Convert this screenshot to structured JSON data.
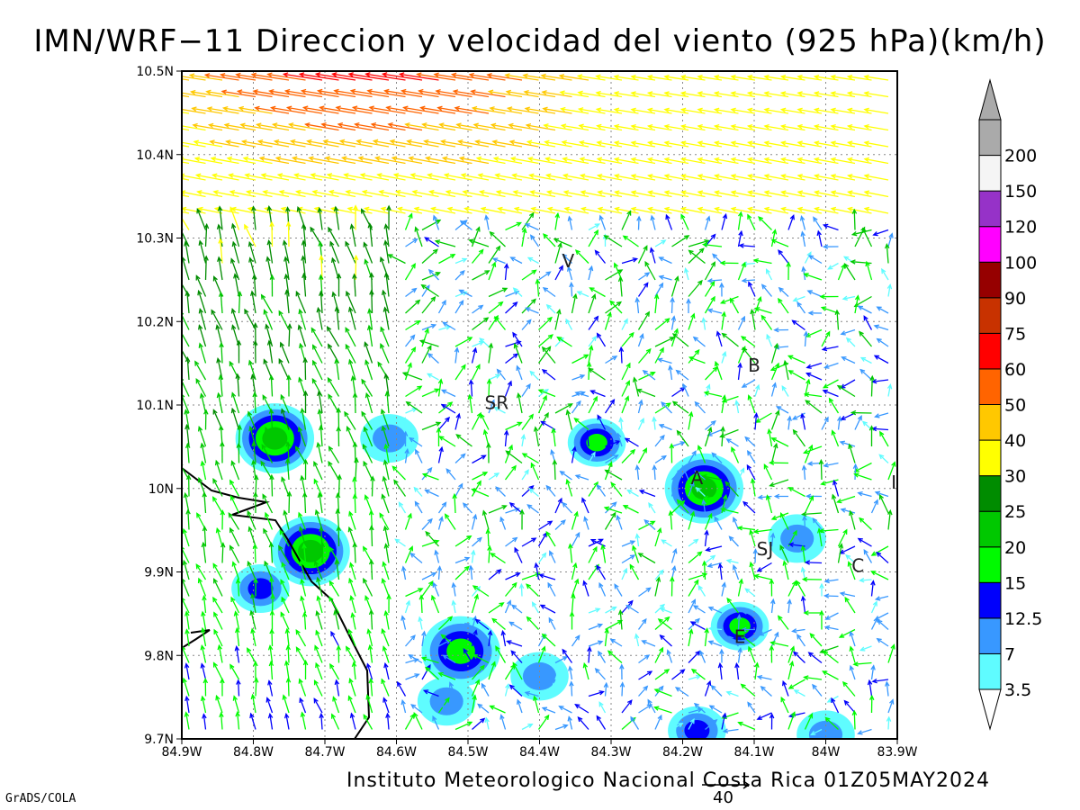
{
  "title": "IMN/WRF−11 Direccion y velocidad del viento (925 hPa)(km/h)",
  "credit": "Instituto Meteorologico Nacional Costa Rica 01Z05MAY2024",
  "software": "GrADS/COLA",
  "reference_vector": {
    "label": "40",
    "value_kmh": 40
  },
  "map": {
    "lon_range": [
      -84.9,
      -83.9
    ],
    "lat_range": [
      9.7,
      10.5
    ],
    "x_ticks": [
      {
        "lon": -84.9,
        "label": "84.9W"
      },
      {
        "lon": -84.8,
        "label": "84.8W"
      },
      {
        "lon": -84.7,
        "label": "84.7W"
      },
      {
        "lon": -84.6,
        "label": "84.6W"
      },
      {
        "lon": -84.5,
        "label": "84.5W"
      },
      {
        "lon": -84.4,
        "label": "84.4W"
      },
      {
        "lon": -84.3,
        "label": "84.3W"
      },
      {
        "lon": -84.2,
        "label": "84.2W"
      },
      {
        "lon": -84.1,
        "label": "84.1W"
      },
      {
        "lon": -84.0,
        "label": "84W"
      },
      {
        "lon": -83.9,
        "label": "83.9W"
      }
    ],
    "y_ticks": [
      {
        "lat": 9.7,
        "label": "9.7N"
      },
      {
        "lat": 9.8,
        "label": "9.8N"
      },
      {
        "lat": 9.9,
        "label": "9.9N"
      },
      {
        "lat": 10.0,
        "label": "10N"
      },
      {
        "lat": 10.1,
        "label": "10.1N"
      },
      {
        "lat": 10.2,
        "label": "10.2N"
      },
      {
        "lat": 10.3,
        "label": "10.3N"
      },
      {
        "lat": 10.4,
        "label": "10.4N"
      },
      {
        "lat": 10.5,
        "label": "10.5N"
      }
    ],
    "grid": true,
    "places": [
      {
        "label": "V",
        "lon": -84.36,
        "lat": 10.265
      },
      {
        "label": "SR",
        "lon": -84.46,
        "lat": 10.095
      },
      {
        "label": "B",
        "lon": -84.1,
        "lat": 10.14
      },
      {
        "label": "A",
        "lon": -84.18,
        "lat": 10.005
      },
      {
        "label": "SJ",
        "lon": -84.085,
        "lat": 9.92
      },
      {
        "label": "C",
        "lon": -83.955,
        "lat": 9.9
      },
      {
        "label": "E",
        "lon": -84.12,
        "lat": 9.815
      },
      {
        "label": "I",
        "lon": -83.905,
        "lat": 10.0
      }
    ],
    "speed_centers": [
      {
        "lon": -84.77,
        "lat": 10.06,
        "peak_kmh": 22
      },
      {
        "lon": -84.72,
        "lat": 9.925,
        "peak_kmh": 20
      },
      {
        "lon": -84.79,
        "lat": 9.88,
        "peak_kmh": 14
      },
      {
        "lon": -84.17,
        "lat": 10.0,
        "peak_kmh": 22
      },
      {
        "lon": -84.32,
        "lat": 10.055,
        "peak_kmh": 16
      },
      {
        "lon": -84.51,
        "lat": 9.805,
        "peak_kmh": 18
      },
      {
        "lon": -84.12,
        "lat": 9.835,
        "peak_kmh": 15
      },
      {
        "lon": -84.4,
        "lat": 9.775,
        "peak_kmh": 10
      },
      {
        "lon": -84.53,
        "lat": 9.745,
        "peak_kmh": 9
      },
      {
        "lon": -84.04,
        "lat": 9.94,
        "peak_kmh": 7
      },
      {
        "lon": -84.61,
        "lat": 10.06,
        "peak_kmh": 10
      },
      {
        "lon": -84.18,
        "lat": 9.71,
        "peak_kmh": 13
      },
      {
        "lon": -84.0,
        "lat": 9.705,
        "peak_kmh": 10
      }
    ]
  },
  "colorbar": {
    "levels": [
      {
        "label": "3.5",
        "color": "#5ffcff"
      },
      {
        "label": "7",
        "color": "#3898ff"
      },
      {
        "label": "12.5",
        "color": "#0000fc"
      },
      {
        "label": "15",
        "color": "#00fa00"
      },
      {
        "label": "20",
        "color": "#00c800"
      },
      {
        "label": "25",
        "color": "#008c00"
      },
      {
        "label": "30",
        "color": "#ffff00"
      },
      {
        "label": "40",
        "color": "#ffc800"
      },
      {
        "label": "50",
        "color": "#ff6400"
      },
      {
        "label": "60",
        "color": "#ff0000"
      },
      {
        "label": "75",
        "color": "#c83200"
      },
      {
        "label": "90",
        "color": "#960000"
      },
      {
        "label": "100",
        "color": "#ff00ff"
      },
      {
        "label": "120",
        "color": "#9632c8"
      },
      {
        "label": "150",
        "color": "#f5f5f5"
      },
      {
        "label": "200",
        "color": "#aaaaaa"
      }
    ]
  }
}
